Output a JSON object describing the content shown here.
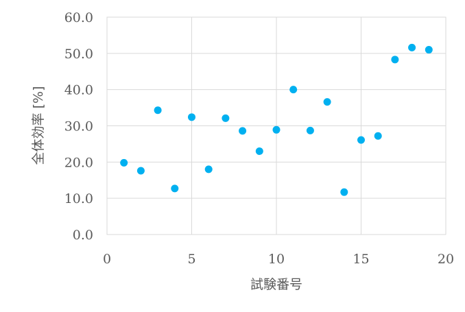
{
  "chart_data": {
    "type": "scatter",
    "xlabel": "試験番号",
    "ylabel": "全体効率 [%]",
    "xlim": [
      0,
      20
    ],
    "ylim": [
      0,
      60
    ],
    "x_ticks": [
      "0",
      "5",
      "10",
      "15",
      "20"
    ],
    "y_ticks": [
      "0.0",
      "10.0",
      "20.0",
      "30.0",
      "40.0",
      "50.0",
      "60.0"
    ],
    "grid": true,
    "legend": "none",
    "marker_color": "#00b0f0",
    "points": [
      {
        "x": 1,
        "y": 19.8
      },
      {
        "x": 2,
        "y": 17.6
      },
      {
        "x": 3,
        "y": 34.3
      },
      {
        "x": 4,
        "y": 12.7
      },
      {
        "x": 5,
        "y": 32.4
      },
      {
        "x": 6,
        "y": 18.0
      },
      {
        "x": 7,
        "y": 32.1
      },
      {
        "x": 8,
        "y": 28.6
      },
      {
        "x": 9,
        "y": 23.0
      },
      {
        "x": 10,
        "y": 28.9
      },
      {
        "x": 11,
        "y": 40.0
      },
      {
        "x": 12,
        "y": 28.7
      },
      {
        "x": 13,
        "y": 36.6
      },
      {
        "x": 14,
        "y": 11.7
      },
      {
        "x": 15,
        "y": 26.1
      },
      {
        "x": 16,
        "y": 27.2
      },
      {
        "x": 17,
        "y": 48.3
      },
      {
        "x": 18,
        "y": 51.6
      },
      {
        "x": 19,
        "y": 51.0
      }
    ]
  }
}
